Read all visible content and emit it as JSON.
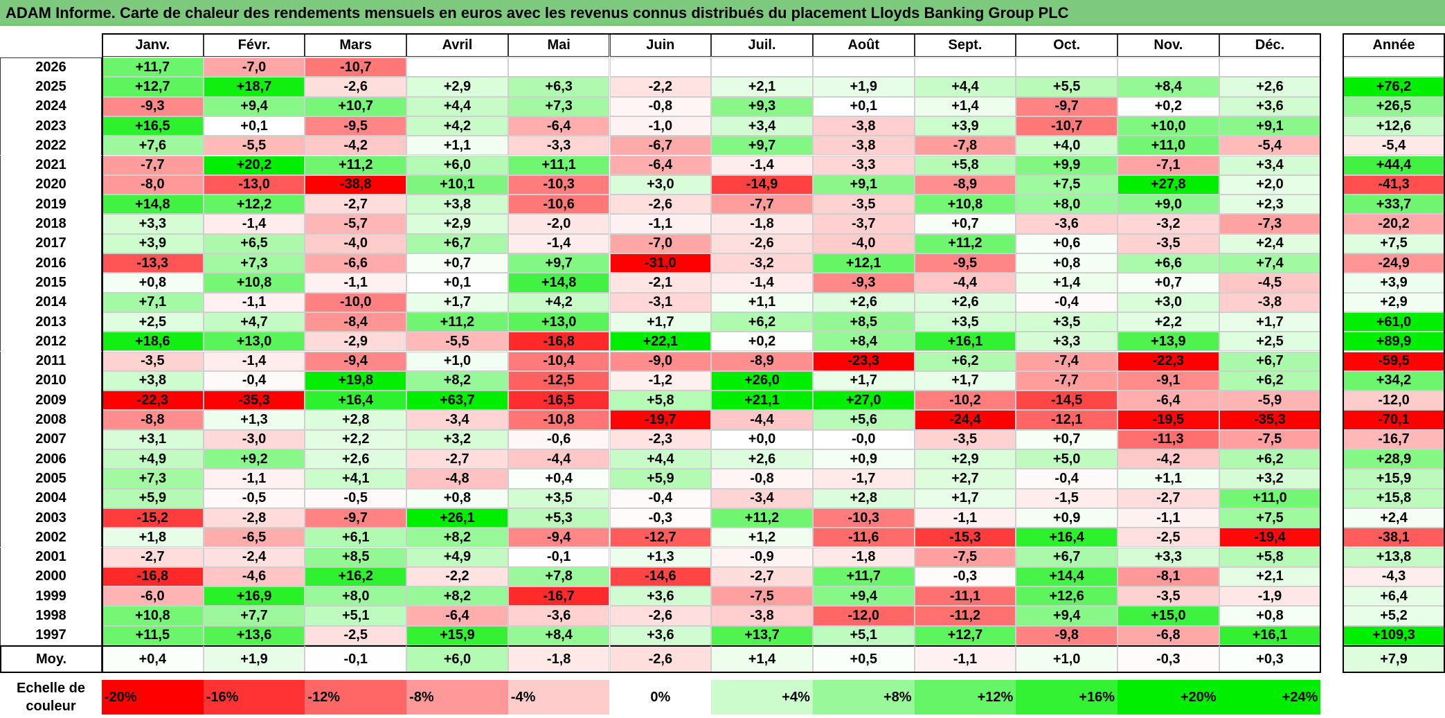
{
  "title": "ADAM Informe. Carte de chaleur des rendements mensuels en euros avec les revenus connus distribués du placement Lloyds Banking Group PLC",
  "colors": {
    "title_bg": "#7dc97d",
    "neg_max": "#ff0000",
    "pos_max": "#00ee00",
    "neutral": "#ffffff"
  },
  "chart_data": {
    "type": "heatmap",
    "title": "ADAM Informe. Carte de chaleur des rendements mensuels en euros avec les revenus connus distribués du placement Lloyds Banking Group PLC",
    "columns": [
      "Janv.",
      "Févr.",
      "Mars",
      "Avril",
      "Mai",
      "Juin",
      "Juil.",
      "Août",
      "Sept.",
      "Oct.",
      "Nov.",
      "Déc."
    ],
    "year_column_label": "Année",
    "rows": [
      {
        "year": "2026",
        "months": [
          "+11,7",
          "-7,0",
          "-10,7",
          "",
          "",
          "",
          "",
          "",
          "",
          "",
          "",
          ""
        ],
        "annual": ""
      },
      {
        "year": "2025",
        "months": [
          "+12,7",
          "+18,7",
          "-2,6",
          "+2,9",
          "+6,3",
          "-2,2",
          "+2,1",
          "+1,9",
          "+4,4",
          "+5,5",
          "+8,4",
          "+2,6"
        ],
        "annual": "+76,2"
      },
      {
        "year": "2024",
        "months": [
          "-9,3",
          "+9,4",
          "+10,7",
          "+4,4",
          "+7,3",
          "-0,8",
          "+9,3",
          "+0,1",
          "+1,4",
          "-9,7",
          "+0,2",
          "+3,6"
        ],
        "annual": "+26,5"
      },
      {
        "year": "2023",
        "months": [
          "+16,5",
          "+0,1",
          "-9,5",
          "+4,2",
          "-6,4",
          "-1,0",
          "+3,4",
          "-3,8",
          "+3,9",
          "-10,7",
          "+10,0",
          "+9,1"
        ],
        "annual": "+12,6"
      },
      {
        "year": "2022",
        "months": [
          "+7,6",
          "-5,5",
          "-4,2",
          "+1,1",
          "-3,3",
          "-6,7",
          "+9,7",
          "-3,8",
          "-7,8",
          "+4,0",
          "+11,0",
          "-5,4"
        ],
        "annual": "-5,4"
      },
      {
        "year": "2021",
        "months": [
          "-7,7",
          "+20,2",
          "+11,2",
          "+6,0",
          "+11,1",
          "-6,4",
          "-1,4",
          "-3,3",
          "+5,8",
          "+9,9",
          "-7,1",
          "+3,4"
        ],
        "annual": "+44,4"
      },
      {
        "year": "2020",
        "months": [
          "-8,0",
          "-13,0",
          "-38,8",
          "+10,1",
          "-10,3",
          "+3,0",
          "-14,9",
          "+9,1",
          "-8,9",
          "+7,5",
          "+27,8",
          "+2,0"
        ],
        "annual": "-41,3"
      },
      {
        "year": "2019",
        "months": [
          "+14,8",
          "+12,2",
          "-2,7",
          "+3,8",
          "-10,6",
          "-2,6",
          "-7,7",
          "-3,5",
          "+10,8",
          "+8,0",
          "+9,0",
          "+2,3"
        ],
        "annual": "+33,7"
      },
      {
        "year": "2018",
        "months": [
          "+3,3",
          "-1,4",
          "-5,7",
          "+2,9",
          "-2,0",
          "-1,1",
          "-1,8",
          "-3,7",
          "+0,7",
          "-3,6",
          "-3,2",
          "-7,3"
        ],
        "annual": "-20,2"
      },
      {
        "year": "2017",
        "months": [
          "+3,9",
          "+6,5",
          "-4,0",
          "+6,7",
          "-1,4",
          "-7,0",
          "-2,6",
          "-4,0",
          "+11,2",
          "+0,6",
          "-3,5",
          "+2,4"
        ],
        "annual": "+7,5"
      },
      {
        "year": "2016",
        "months": [
          "-13,3",
          "+7,3",
          "-6,6",
          "+0,7",
          "+9,7",
          "-31,0",
          "-3,2",
          "+12,1",
          "-9,5",
          "+0,8",
          "+6,6",
          "+7,4"
        ],
        "annual": "-24,9"
      },
      {
        "year": "2015",
        "months": [
          "+0,8",
          "+10,8",
          "-1,1",
          "+0,1",
          "+14,8",
          "-2,1",
          "-1,4",
          "-9,3",
          "-4,4",
          "+1,4",
          "+0,7",
          "-4,5"
        ],
        "annual": "+3,9"
      },
      {
        "year": "2014",
        "months": [
          "+7,1",
          "-1,1",
          "-10,0",
          "+1,7",
          "+4,2",
          "-3,1",
          "+1,1",
          "+2,6",
          "+2,6",
          "-0,4",
          "+3,0",
          "-3,8"
        ],
        "annual": "+2,9"
      },
      {
        "year": "2013",
        "months": [
          "+2,5",
          "+4,7",
          "-8,4",
          "+11,2",
          "+13,0",
          "+1,7",
          "+6,2",
          "+8,5",
          "+3,5",
          "+3,5",
          "+2,2",
          "+1,7"
        ],
        "annual": "+61,0"
      },
      {
        "year": "2012",
        "months": [
          "+18,6",
          "+13,0",
          "-2,9",
          "-5,5",
          "-16,8",
          "+22,1",
          "+0,2",
          "+8,4",
          "+16,1",
          "+3,3",
          "+13,9",
          "+2,5"
        ],
        "annual": "+89,9"
      },
      {
        "year": "2011",
        "months": [
          "-3,5",
          "-1,4",
          "-9,4",
          "+1,0",
          "-10,4",
          "-9,0",
          "-8,9",
          "-23,3",
          "+6,2",
          "-7,4",
          "-22,3",
          "+6,7"
        ],
        "annual": "-59,5"
      },
      {
        "year": "2010",
        "months": [
          "+3,8",
          "-0,4",
          "+19,8",
          "+8,2",
          "-12,5",
          "-1,2",
          "+26,0",
          "+1,7",
          "+1,7",
          "-7,7",
          "-9,1",
          "+6,2"
        ],
        "annual": "+34,2"
      },
      {
        "year": "2009",
        "months": [
          "-22,3",
          "-35,3",
          "+16,4",
          "+63,7",
          "-16,5",
          "+5,8",
          "+21,1",
          "+27,0",
          "-10,2",
          "-14,5",
          "-6,4",
          "-5,9"
        ],
        "annual": "-12,0"
      },
      {
        "year": "2008",
        "months": [
          "-8,8",
          "+1,3",
          "+2,8",
          "-3,4",
          "-10,8",
          "-19,7",
          "-4,4",
          "+5,6",
          "-24,4",
          "-12,1",
          "-19,5",
          "-35,3"
        ],
        "annual": "-70,1"
      },
      {
        "year": "2007",
        "months": [
          "+3,1",
          "-3,0",
          "+2,2",
          "+3,2",
          "-0,6",
          "-2,3",
          "+0,0",
          "-0,0",
          "-3,5",
          "+0,7",
          "-11,3",
          "-7,5"
        ],
        "annual": "-16,7"
      },
      {
        "year": "2006",
        "months": [
          "+4,9",
          "+9,2",
          "+2,6",
          "-2,7",
          "-4,4",
          "+4,4",
          "+2,6",
          "+0,9",
          "+2,9",
          "+5,0",
          "-4,2",
          "+6,2"
        ],
        "annual": "+28,9"
      },
      {
        "year": "2005",
        "months": [
          "+7,3",
          "-1,1",
          "+4,1",
          "-4,8",
          "+0,4",
          "+5,9",
          "-0,8",
          "-1,7",
          "+2,7",
          "-0,4",
          "+1,1",
          "+3,2"
        ],
        "annual": "+15,9"
      },
      {
        "year": "2004",
        "months": [
          "+5,9",
          "-0,5",
          "-0,5",
          "+0,8",
          "+3,5",
          "-0,4",
          "-3,4",
          "+2,8",
          "+1,7",
          "-1,5",
          "-2,7",
          "+11,0"
        ],
        "annual": "+15,8"
      },
      {
        "year": "2003",
        "months": [
          "-15,2",
          "-2,8",
          "-9,7",
          "+26,1",
          "+5,3",
          "-0,3",
          "+11,2",
          "-10,3",
          "-1,1",
          "+0,9",
          "-1,1",
          "+7,5"
        ],
        "annual": "+2,4"
      },
      {
        "year": "2002",
        "months": [
          "+1,8",
          "-6,5",
          "+6,1",
          "+8,2",
          "-9,4",
          "-12,7",
          "+1,2",
          "-11,6",
          "-15,3",
          "+16,4",
          "-2,5",
          "-19,4"
        ],
        "annual": "-38,1"
      },
      {
        "year": "2001",
        "months": [
          "-2,7",
          "-2,4",
          "+8,5",
          "+4,9",
          "-0,1",
          "+1,3",
          "-0,9",
          "-1,8",
          "-7,5",
          "+6,7",
          "+3,3",
          "+5,8"
        ],
        "annual": "+13,8"
      },
      {
        "year": "2000",
        "months": [
          "-16,8",
          "-4,6",
          "+16,2",
          "-2,2",
          "+7,8",
          "-14,6",
          "-2,7",
          "+11,7",
          "-0,3",
          "+14,4",
          "-8,1",
          "+2,1"
        ],
        "annual": "-4,3"
      },
      {
        "year": "1999",
        "months": [
          "-6,0",
          "+16,9",
          "+8,0",
          "+8,2",
          "-16,7",
          "+3,6",
          "-7,5",
          "+9,4",
          "-11,1",
          "+12,6",
          "-3,5",
          "-1,9"
        ],
        "annual": "+6,4"
      },
      {
        "year": "1998",
        "months": [
          "+10,8",
          "+7,7",
          "+5,1",
          "-6,4",
          "-3,6",
          "-2,6",
          "-3,8",
          "-12,0",
          "-11,2",
          "+9,4",
          "+15,0",
          "+0,8"
        ],
        "annual": "+5,2"
      },
      {
        "year": "1997",
        "months": [
          "+11,5",
          "+13,6",
          "-2,5",
          "+15,9",
          "+8,4",
          "+3,6",
          "+13,7",
          "+5,1",
          "+12,7",
          "-9,8",
          "-6,8",
          "+16,1"
        ],
        "annual": "+109,3"
      }
    ],
    "average": {
      "label": "Moy.",
      "months": [
        "+0,4",
        "+1,9",
        "-0,1",
        "+6,0",
        "-1,8",
        "-2,6",
        "+1,4",
        "+0,5",
        "-1,1",
        "+1,0",
        "-0,3",
        "+0,3"
      ],
      "annual": "+7,9"
    },
    "color_scale": {
      "label": "Echelle de couleur",
      "steps": [
        "-20%",
        "-16%",
        "-12%",
        "-8%",
        "-4%",
        "0%",
        "+4%",
        "+8%",
        "+12%",
        "+16%",
        "+20%",
        "+24%"
      ]
    }
  }
}
